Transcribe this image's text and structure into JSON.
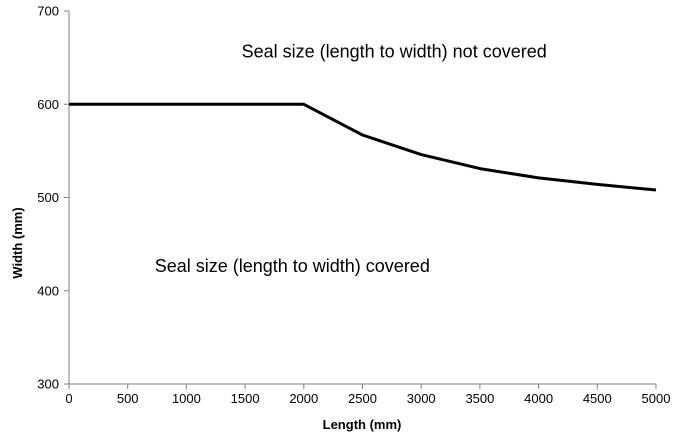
{
  "chart_data": {
    "type": "line",
    "xlabel": "Length (mm)",
    "ylabel": "Width (mm)",
    "xlim": [
      0,
      5000
    ],
    "ylim": [
      300,
      700
    ],
    "xticks": [
      0,
      500,
      1000,
      1500,
      2000,
      2500,
      3000,
      3500,
      4000,
      4500,
      5000
    ],
    "yticks": [
      300,
      400,
      500,
      600,
      700
    ],
    "grid": false,
    "legend": "none",
    "series": [
      {
        "x": [
          0,
          500,
          1000,
          1500,
          2000,
          2500,
          3000,
          3500,
          4000,
          4500,
          5000
        ],
        "y": [
          600,
          600,
          600,
          600,
          600,
          567,
          546,
          531,
          521,
          514,
          508
        ],
        "color": "#000000"
      }
    ],
    "annotations": [
      {
        "text": "Seal size (length to width) not covered",
        "x": 1470,
        "y": 650
      },
      {
        "text": "Seal size (length to width) covered",
        "x": 730,
        "y": 420
      }
    ]
  }
}
